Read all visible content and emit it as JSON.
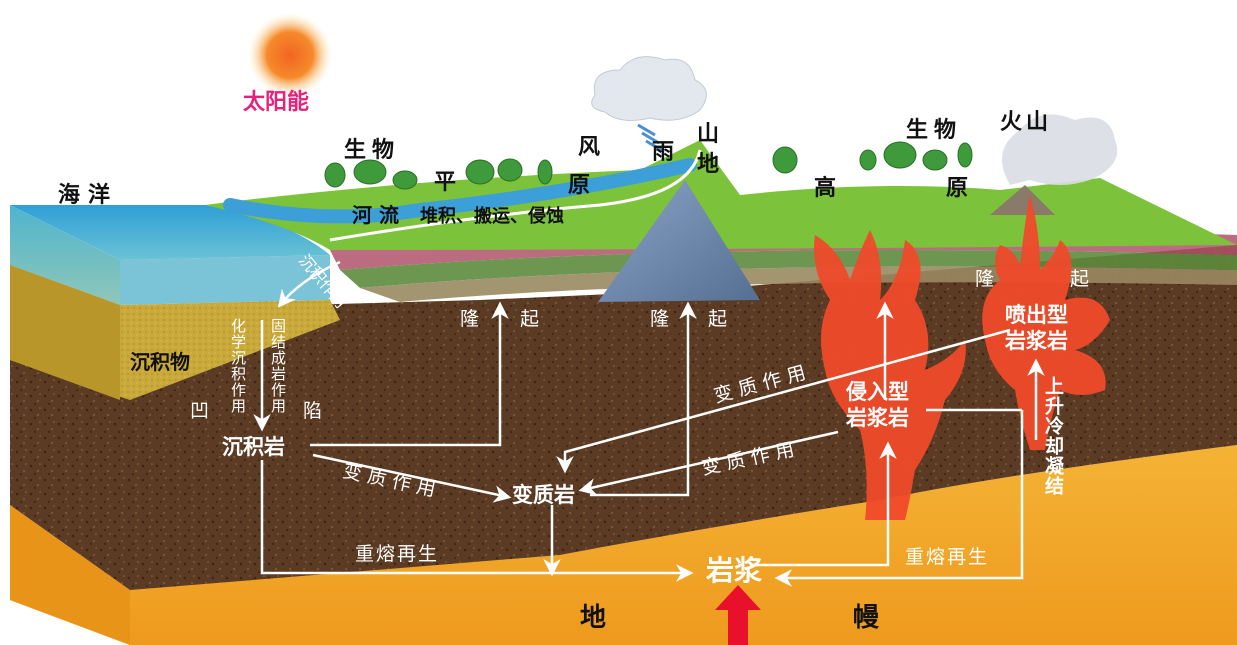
{
  "labels": {
    "sun": "太阳能",
    "ocean": "海洋",
    "organisms_left": "生物",
    "plain_1": "平",
    "plain_2": "原",
    "wind": "风",
    "rain": "雨",
    "mountain_1": "山",
    "mountain_2": "地",
    "organisms_right": "生物",
    "volcano": "火山",
    "plateau_1": "高",
    "plateau_2": "原",
    "river_process": "河 流",
    "river_actions": "堆积、搬运、侵蚀",
    "sedimentation": "沉积作用",
    "sediment": "沉积物",
    "chemical_deposition": "化学沉积作用",
    "consolidation": "固结成岩作用",
    "depression_1": "凹",
    "depression_2": "陷",
    "sedimentary_rock": "沉积岩",
    "uplift_a_1": "隆",
    "uplift_a_2": "起",
    "uplift_b_1": "隆",
    "uplift_b_2": "起",
    "uplift_c_1": "隆",
    "uplift_c_2": "起",
    "metamorphism_1": "变 质 作 用",
    "metamorphism_2": "变 质 作 用",
    "metamorphism_3": "变 质 作 用",
    "metamorphic_rock": "变质岩",
    "intrusive_rock_1": "侵入型",
    "intrusive_rock_2": "岩浆岩",
    "extrusive_rock_1": "喷出型",
    "extrusive_rock_2": "岩浆岩",
    "rise_cool": "上升冷却凝结",
    "remelt_left": "重熔再生",
    "remelt_right": "重熔再生",
    "magma": "岩浆",
    "mantle_1": "地",
    "mantle_2": "幔"
  },
  "colors": {
    "ocean": "#3fa8d8",
    "grass": "#7cc23a",
    "soil": "#5a3a22",
    "mantle": "#f1a929",
    "magma_plume": "#ef4a2a",
    "sun": "#f26522",
    "arrow": "#ffffff",
    "heat_arrow": "#e8102a"
  }
}
